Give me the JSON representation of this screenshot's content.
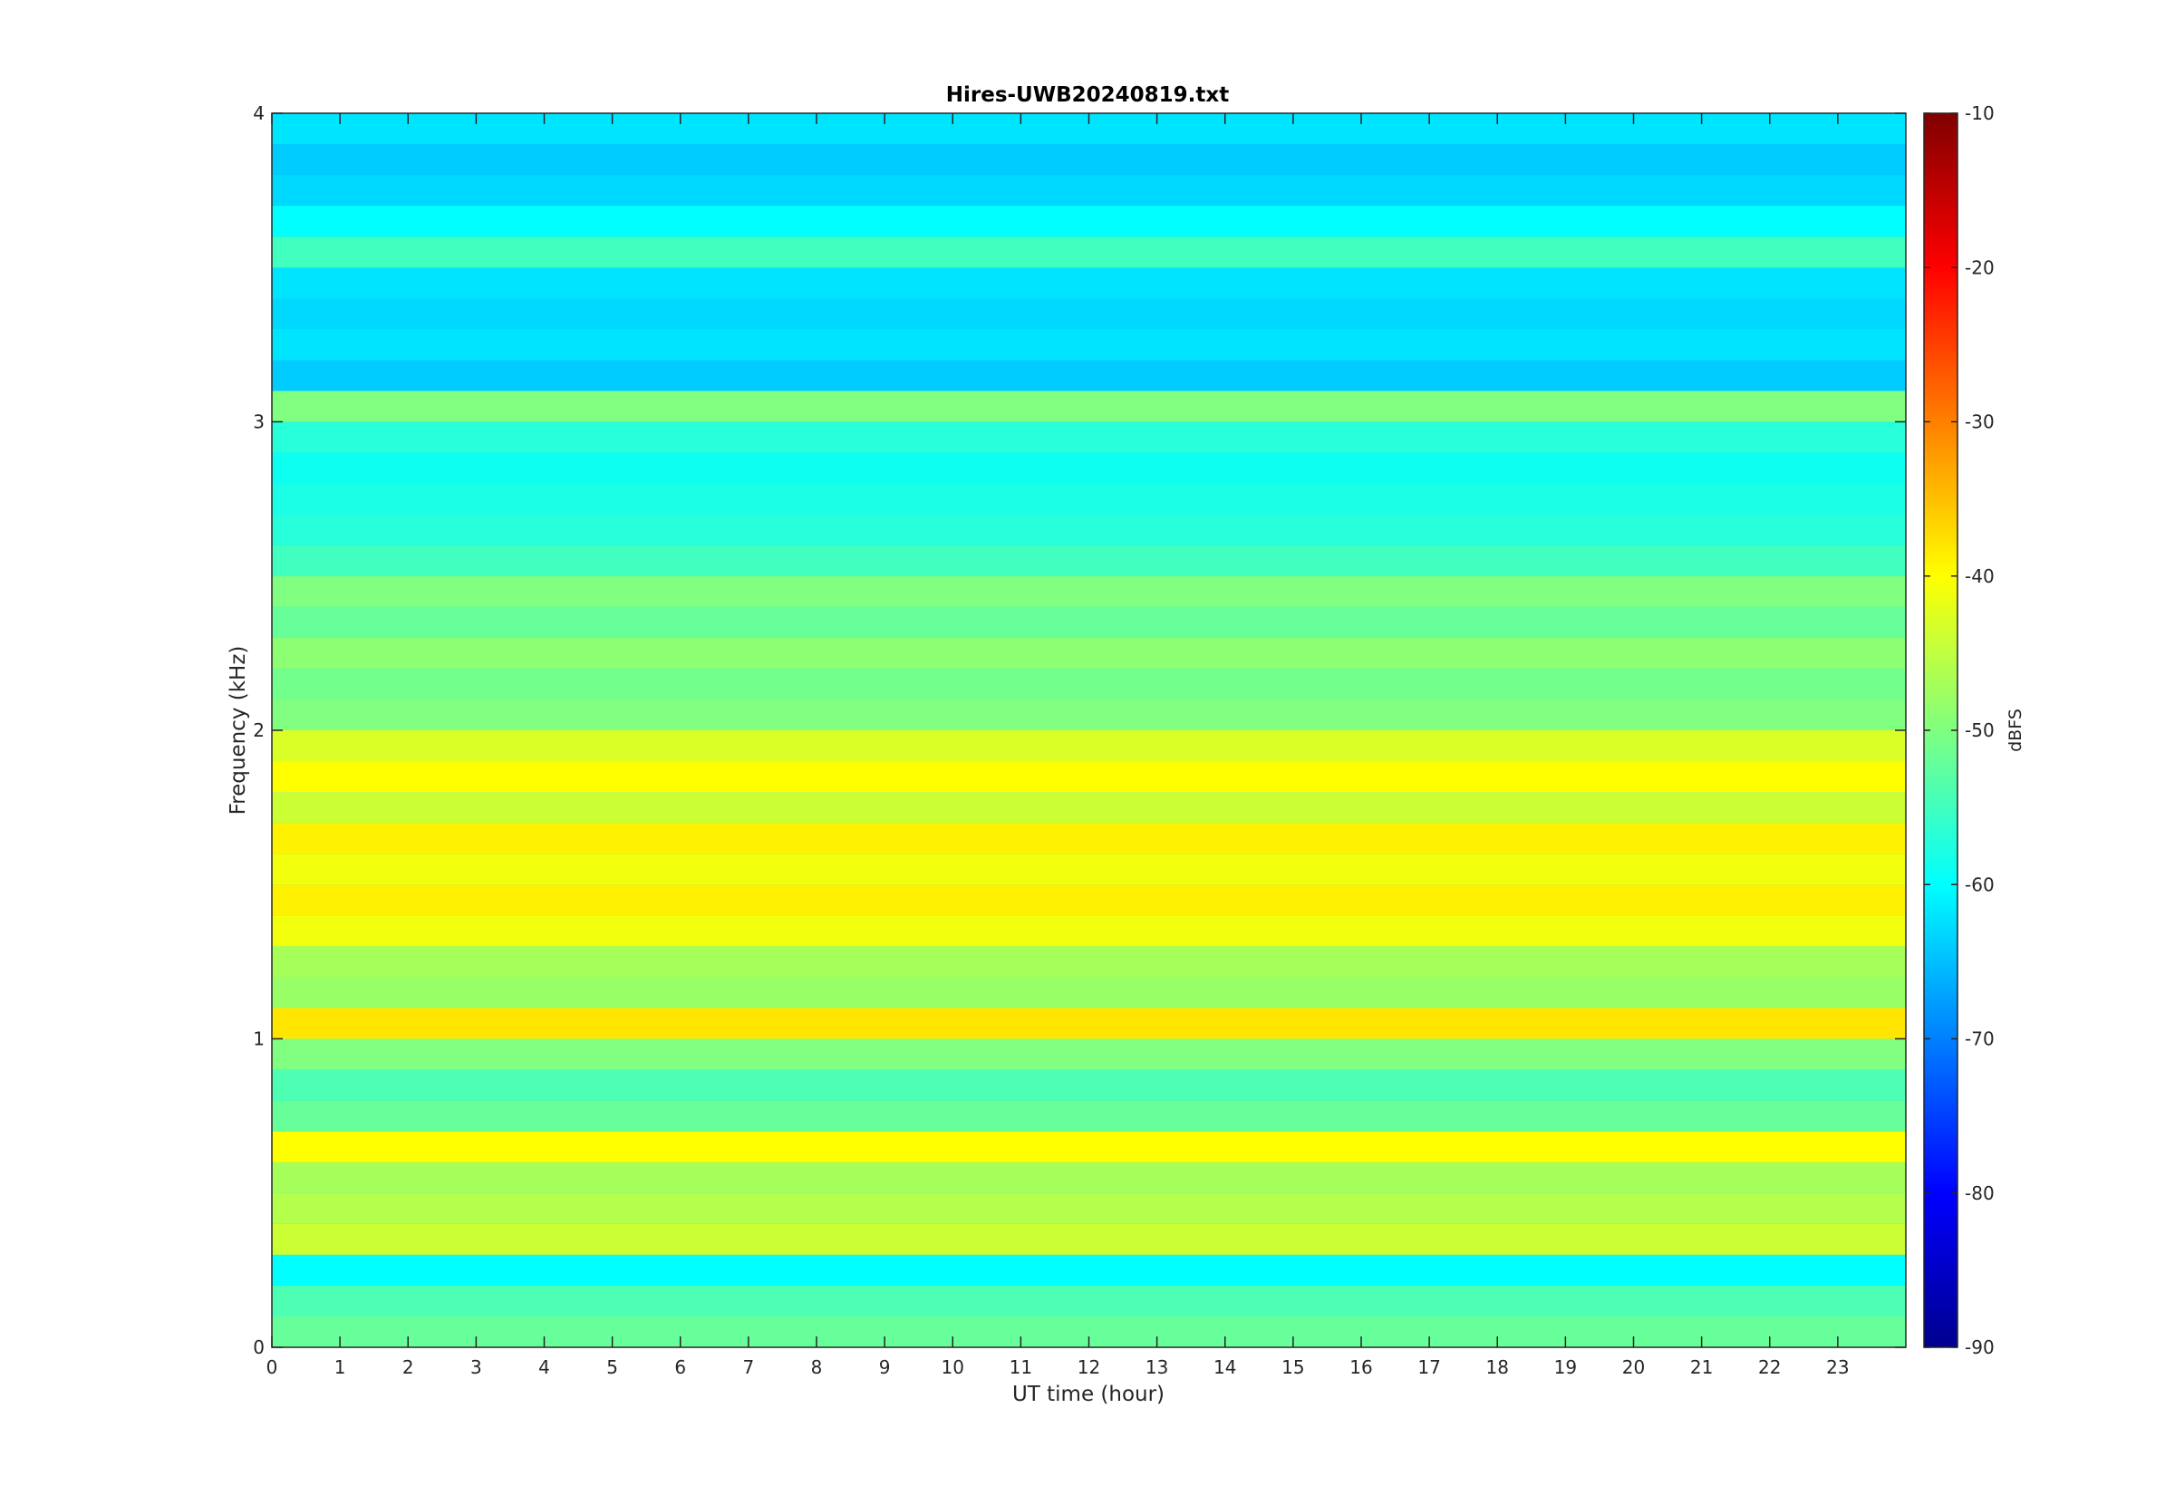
{
  "chart_data": {
    "type": "heatmap",
    "title": "Hires-UWB20240819.txt",
    "xlabel": "UT time (hour)",
    "ylabel": "Frequency (kHz)",
    "xlim": [
      0,
      24
    ],
    "ylim": [
      0,
      4
    ],
    "x_ticks": [
      "0",
      "1",
      "2",
      "3",
      "4",
      "5",
      "6",
      "7",
      "8",
      "9",
      "10",
      "11",
      "12",
      "13",
      "14",
      "15",
      "16",
      "17",
      "18",
      "19",
      "20",
      "21",
      "22",
      "23"
    ],
    "y_ticks": [
      "0",
      "1",
      "2",
      "3",
      "4"
    ],
    "colorbar": {
      "label": "dBFS",
      "range": [
        -90,
        -10
      ],
      "ticks": [
        "-10",
        "-20",
        "-30",
        "-40",
        "-50",
        "-60",
        "-70",
        "-80",
        "-90"
      ],
      "colormap": "jet"
    },
    "frequency_bands_khz": [
      {
        "f": 0.05,
        "level": -52
      },
      {
        "f": 0.15,
        "level": -54
      },
      {
        "f": 0.25,
        "level": -60
      },
      {
        "f": 0.35,
        "level": -44
      },
      {
        "f": 0.45,
        "level": -46
      },
      {
        "f": 0.55,
        "level": -47
      },
      {
        "f": 0.65,
        "level": -40
      },
      {
        "f": 0.75,
        "level": -52
      },
      {
        "f": 0.85,
        "level": -54
      },
      {
        "f": 0.95,
        "level": -50
      },
      {
        "f": 1.05,
        "level": -38
      },
      {
        "f": 1.15,
        "level": -48
      },
      {
        "f": 1.25,
        "level": -47
      },
      {
        "f": 1.35,
        "level": -41
      },
      {
        "f": 1.45,
        "level": -39
      },
      {
        "f": 1.55,
        "level": -41
      },
      {
        "f": 1.65,
        "level": -39
      },
      {
        "f": 1.75,
        "level": -44
      },
      {
        "f": 1.85,
        "level": -40
      },
      {
        "f": 1.95,
        "level": -43
      },
      {
        "f": 2.05,
        "level": -50
      },
      {
        "f": 2.15,
        "level": -51
      },
      {
        "f": 2.25,
        "level": -49
      },
      {
        "f": 2.35,
        "level": -52
      },
      {
        "f": 2.45,
        "level": -50
      },
      {
        "f": 2.55,
        "level": -55
      },
      {
        "f": 2.65,
        "level": -57
      },
      {
        "f": 2.75,
        "level": -58
      },
      {
        "f": 2.85,
        "level": -59
      },
      {
        "f": 2.95,
        "level": -57
      },
      {
        "f": 3.05,
        "level": -50
      },
      {
        "f": 3.15,
        "level": -64
      },
      {
        "f": 3.25,
        "level": -62
      },
      {
        "f": 3.35,
        "level": -63
      },
      {
        "f": 3.45,
        "level": -62
      },
      {
        "f": 3.55,
        "level": -55
      },
      {
        "f": 3.65,
        "level": -60
      },
      {
        "f": 3.75,
        "level": -63
      },
      {
        "f": 3.85,
        "level": -64
      },
      {
        "f": 3.95,
        "level": -62
      }
    ],
    "grid": false
  },
  "colors": {
    "axis": "#262626",
    "background": "#ffffff"
  }
}
